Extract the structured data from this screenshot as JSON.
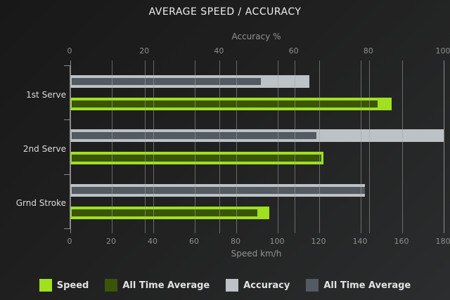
{
  "title": "AVERAGE SPEED / ACCURACY",
  "colors": {
    "background_start": "#181818",
    "background_end": "#2b2d2e",
    "speed_bar": "#A0E01E",
    "speed_avg_bar": "#3A5508",
    "accuracy_bar": "#BCC2C6",
    "accuracy_avg_bar": "#545A61",
    "gridline": "#a5a5a5",
    "axis_line": "#8a8a8a",
    "title_text": "#eeeeee",
    "tick_text": "#8f8f8f",
    "category_text": "#dcdcdc",
    "legend_text": "#e2e2e2"
  },
  "chart_data": {
    "type": "bar",
    "orientation": "horizontal",
    "title": "AVERAGE SPEED / ACCURACY",
    "categories": [
      "1st Serve",
      "2nd Serve",
      "Grnd Stroke"
    ],
    "axes": {
      "top": {
        "label": "Accuracy %",
        "min": 0,
        "max": 100,
        "step": 20,
        "ticks": [
          0,
          20,
          40,
          60,
          80,
          100
        ]
      },
      "bottom": {
        "label": "Speed km/h",
        "min": 0,
        "max": 180,
        "step": 20,
        "ticks": [
          0,
          20,
          40,
          60,
          80,
          100,
          120,
          140,
          160,
          180
        ]
      }
    },
    "series": [
      {
        "name": "Speed",
        "axis": "speed",
        "role": "main",
        "color": "#A0E01E",
        "values": [
          155,
          122,
          96
        ]
      },
      {
        "name": "All Time Average",
        "axis": "speed",
        "role": "avg",
        "color": "#3A5508",
        "values": [
          148,
          121,
          90
        ]
      },
      {
        "name": "Accuracy",
        "axis": "accuracy",
        "role": "main",
        "color": "#BCC2C6",
        "values": [
          64,
          100,
          79
        ]
      },
      {
        "name": "All Time Average",
        "axis": "accuracy",
        "role": "avg",
        "color": "#545A61",
        "values": [
          51,
          66,
          79
        ]
      }
    ],
    "legend_position": "bottom",
    "grid": "vertical-both-axes"
  }
}
